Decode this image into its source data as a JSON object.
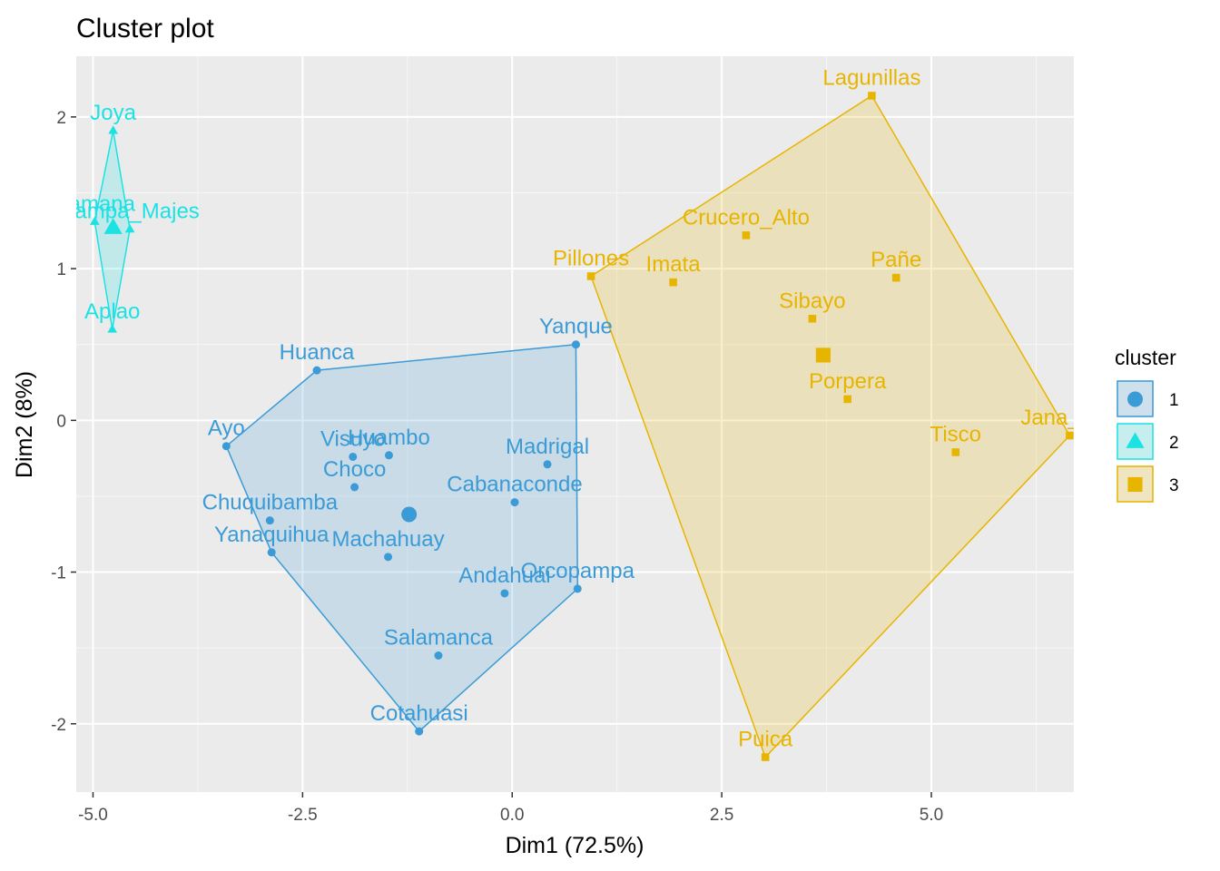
{
  "chart_data": {
    "type": "scatter",
    "title": "Cluster plot",
    "xlabel": "Dim1 (72.5%)",
    "ylabel": "Dim2 (8%)",
    "xlim": [
      -5.2,
      6.7
    ],
    "ylim": [
      -2.45,
      2.4
    ],
    "x_ticks": [
      -5.0,
      -2.5,
      0.0,
      2.5,
      5.0
    ],
    "x_tick_labels": [
      "-5.0",
      "-2.5",
      "0.0",
      "2.5",
      "5.0"
    ],
    "y_ticks": [
      -2,
      -1,
      0,
      1,
      2
    ],
    "y_tick_labels": [
      "-2",
      "-1",
      "0",
      "1",
      "2"
    ],
    "grid": true,
    "legend": {
      "title": "cluster",
      "position": "right",
      "entries": [
        "1",
        "2",
        "3"
      ]
    },
    "series": [
      {
        "name": "1",
        "color": "#3A9BD7",
        "marker": "circle",
        "centroid": [
          -1.23,
          -0.62
        ],
        "hull": [
          "Huanca",
          "Yanque",
          "Orcopampa",
          "Cotahuasi",
          "Yanaquihua",
          "Ayo"
        ],
        "points": [
          {
            "label": "Huanca",
            "x": -2.33,
            "y": 0.33
          },
          {
            "label": "Yanque",
            "x": 0.76,
            "y": 0.5
          },
          {
            "label": "Ayo",
            "x": -3.41,
            "y": -0.17
          },
          {
            "label": "Visuyo",
            "x": -1.9,
            "y": -0.24
          },
          {
            "label": "Huambo",
            "x": -1.47,
            "y": -0.23
          },
          {
            "label": "Madrigal",
            "x": 0.42,
            "y": -0.29
          },
          {
            "label": "Choco",
            "x": -1.88,
            "y": -0.44
          },
          {
            "label": "Cabanaconde",
            "x": 0.03,
            "y": -0.54
          },
          {
            "label": "Chuquibamba",
            "x": -2.89,
            "y": -0.66
          },
          {
            "label": "Yanaquihua",
            "x": -2.87,
            "y": -0.87
          },
          {
            "label": "Machahuay",
            "x": -1.48,
            "y": -0.9
          },
          {
            "label": "Andahuai",
            "x": -0.09,
            "y": -1.14
          },
          {
            "label": "Orcopampa",
            "x": 0.78,
            "y": -1.11
          },
          {
            "label": "Salamanca",
            "x": -0.88,
            "y": -1.55
          },
          {
            "label": "Cotahuasi",
            "x": -1.11,
            "y": -2.05
          }
        ]
      },
      {
        "name": "2",
        "color": "#1CE2E4",
        "marker": "triangle",
        "centroid": [
          -4.76,
          1.27
        ],
        "hull": [
          "Joya",
          "Pampa_Majes",
          "Aplao",
          "Samana"
        ],
        "points": [
          {
            "label": "Joya",
            "x": -4.76,
            "y": 1.91
          },
          {
            "label": "Samana",
            "x": -4.98,
            "y": 1.31
          },
          {
            "label": "Pampa_Majes",
            "x": -4.56,
            "y": 1.26
          },
          {
            "label": "Aplao",
            "x": -4.77,
            "y": 0.6
          }
        ]
      },
      {
        "name": "3",
        "color": "#E7B500",
        "marker": "square",
        "centroid": [
          3.71,
          0.43
        ],
        "hull": [
          "Lagunillas",
          "Jana_Cay",
          "Puica",
          "Pillones"
        ],
        "points": [
          {
            "label": "Lagunillas",
            "x": 4.29,
            "y": 2.14
          },
          {
            "label": "Crucero_Alto",
            "x": 2.79,
            "y": 1.22
          },
          {
            "label": "Pillones",
            "x": 0.94,
            "y": 0.95
          },
          {
            "label": "Imata",
            "x": 1.92,
            "y": 0.91
          },
          {
            "label": "Pañe",
            "x": 4.58,
            "y": 0.94
          },
          {
            "label": "Sibayo",
            "x": 3.58,
            "y": 0.67
          },
          {
            "label": "Porpera",
            "x": 4.0,
            "y": 0.14
          },
          {
            "label": "Tisco",
            "x": 5.29,
            "y": -0.21
          },
          {
            "label": "Jana_Cay",
            "x": 6.65,
            "y": -0.1
          },
          {
            "label": "Puica",
            "x": 3.02,
            "y": -2.22
          }
        ]
      }
    ]
  }
}
